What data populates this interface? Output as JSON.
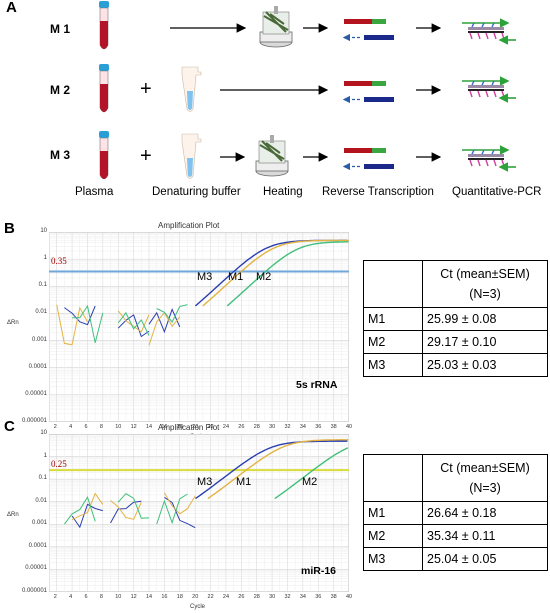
{
  "panelA": {
    "letter": "A",
    "methods": [
      "M 1",
      "M 2",
      "M 3"
    ],
    "plus": "+",
    "steps": [
      "Plasma",
      "Denaturing buffer",
      "Heating",
      "Reverse Transcription",
      "Quantitative-PCR"
    ]
  },
  "panelB": {
    "letter": "B",
    "plot_title": "Amplification Plot",
    "threshold_label": "0.35",
    "curve_labels": [
      "M3",
      "M1",
      "M2"
    ],
    "rna_label": "5s rRNA",
    "table": {
      "header_line1": "Ct (mean±SEM)",
      "header_line2": "(N=3)",
      "rows": [
        {
          "method": "M1",
          "value": "25.99 ± 0.08"
        },
        {
          "method": "M2",
          "value": "29.17 ± 0.10"
        },
        {
          "method": "M3",
          "value": "25.03 ± 0.03"
        }
      ]
    }
  },
  "panelC": {
    "letter": "C",
    "plot_title": "Amplification Plot",
    "threshold_label": "0.25",
    "curve_labels": [
      "M3",
      "M1",
      "M2"
    ],
    "rna_label": "miR-16",
    "table": {
      "header_line1": "Ct (mean±SEM)",
      "header_line2": "(N=3)",
      "rows": [
        {
          "method": "M1",
          "value": "26.64 ± 0.18"
        },
        {
          "method": "M2",
          "value": "35.34 ± 0.11"
        },
        {
          "method": "M3",
          "value": "25.04 ± 0.05"
        }
      ]
    }
  },
  "axes": {
    "y_name": "ΔRn",
    "x_name": "Cycle",
    "y_ticks": [
      "10",
      "1",
      "0.1",
      "0.01",
      "0.001",
      "0.0001",
      "0.00001",
      "0.000001"
    ],
    "x_ticks": [
      "2",
      "4",
      "6",
      "8",
      "10",
      "12",
      "14",
      "16",
      "18",
      "20",
      "22",
      "24",
      "26",
      "28",
      "30",
      "32",
      "34",
      "36",
      "38",
      "40"
    ]
  },
  "chart_data": [
    {
      "type": "line",
      "title": "Amplification Plot",
      "xlabel": "Cycle",
      "ylabel": "ΔRn",
      "yscale": "log",
      "xlim": [
        1,
        40
      ],
      "ylim": [
        1e-06,
        10
      ],
      "threshold": 0.35,
      "series": [
        {
          "name": "M3",
          "ct": 25.03,
          "color": "#2b3fb0"
        },
        {
          "name": "M1",
          "ct": 25.99,
          "color": "#e3b342"
        },
        {
          "name": "M2",
          "ct": 29.17,
          "color": "#3fbf7a"
        }
      ]
    },
    {
      "type": "line",
      "title": "Amplification Plot",
      "xlabel": "Cycle",
      "ylabel": "ΔRn",
      "yscale": "log",
      "xlim": [
        1,
        40
      ],
      "ylim": [
        1e-06,
        10
      ],
      "threshold": 0.25,
      "series": [
        {
          "name": "M3",
          "ct": 25.04,
          "color": "#2b3fb0"
        },
        {
          "name": "M1",
          "ct": 26.64,
          "color": "#e3b342"
        },
        {
          "name": "M2",
          "ct": 35.34,
          "color": "#3fbf7a"
        }
      ]
    }
  ],
  "colors": {
    "tube_cap": "#2a9fd6",
    "tube_blood": "#b3142a",
    "buffer": "#7ec3ef",
    "forward_red": "#b3141e",
    "forward_green": "#3aa640",
    "reverse_blue": "#1b2a8a",
    "threshold_B": "#6fa8dc",
    "threshold_C": "#d8dc3a"
  }
}
